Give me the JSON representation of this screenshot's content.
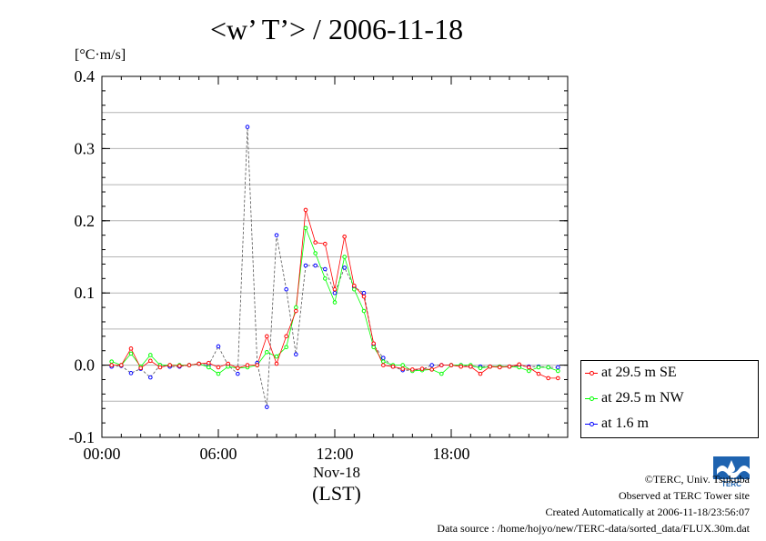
{
  "chart_data": {
    "type": "line",
    "title": "<w’ T’> / 2006-11-18",
    "ylabel": "[°C·m/s]",
    "xlabel": "(LST)",
    "x_date_label": "Nov-18",
    "ylim": [
      -0.1,
      0.4
    ],
    "xlim": [
      0,
      24
    ],
    "yticks": [
      -0.1,
      0.0,
      0.1,
      0.2,
      0.3,
      0.4
    ],
    "ytick_labels": [
      "-0.1",
      "0.0",
      "0.1",
      "0.2",
      "0.3",
      "0.4"
    ],
    "xticks": [
      0,
      6,
      12,
      18
    ],
    "xtick_labels": [
      "00:00",
      "06:00",
      "12:00",
      "18:00"
    ],
    "grid": "horizontal",
    "legend_position": "outside-bottom-right",
    "series": [
      {
        "name": "at 29.5 m SE",
        "color": "#ff0000",
        "x": [
          0.5,
          1.0,
          1.5,
          2.0,
          2.5,
          3.0,
          3.5,
          4.0,
          4.5,
          5.0,
          5.5,
          6.0,
          6.5,
          7.0,
          7.5,
          8.0,
          8.5,
          9.0,
          9.5,
          10.0,
          10.5,
          11.0,
          11.5,
          12.0,
          12.5,
          13.0,
          13.5,
          14.0,
          14.5,
          15.0,
          15.5,
          16.0,
          16.5,
          17.0,
          17.5,
          18.0,
          18.5,
          19.0,
          19.5,
          20.0,
          20.5,
          21.0,
          21.5,
          22.0,
          22.5,
          23.0,
          23.5
        ],
        "y": [
          0.0,
          0.0,
          0.023,
          -0.004,
          0.006,
          -0.003,
          0.0,
          -0.001,
          0.0,
          0.002,
          0.003,
          -0.003,
          0.002,
          -0.004,
          0.0,
          0.0,
          0.04,
          0.002,
          0.04,
          0.075,
          0.215,
          0.17,
          0.168,
          0.105,
          0.178,
          0.11,
          0.095,
          0.03,
          0.0,
          -0.002,
          -0.005,
          -0.006,
          -0.005,
          -0.006,
          0.0,
          0.0,
          -0.002,
          -0.002,
          -0.012,
          -0.002,
          -0.003,
          -0.002,
          0.001,
          -0.003,
          -0.012,
          -0.018,
          -0.018
        ]
      },
      {
        "name": "at 29.5 m NW",
        "color": "#00ff00",
        "x": [
          0.5,
          1.0,
          1.5,
          2.0,
          2.5,
          3.0,
          3.5,
          4.0,
          4.5,
          5.0,
          5.5,
          6.0,
          6.5,
          7.0,
          7.5,
          8.0,
          8.5,
          9.0,
          9.5,
          10.0,
          10.5,
          11.0,
          11.5,
          12.0,
          12.5,
          13.0,
          13.5,
          14.0,
          14.5,
          15.0,
          15.5,
          16.0,
          16.5,
          17.0,
          17.5,
          18.0,
          18.5,
          19.0,
          19.5,
          20.0,
          20.5,
          21.0,
          21.5,
          22.0,
          22.5,
          23.0,
          23.5
        ],
        "y": [
          0.005,
          0.0,
          0.016,
          -0.002,
          0.014,
          0.0,
          0.0,
          0.0,
          0.0,
          0.002,
          -0.003,
          -0.012,
          -0.002,
          -0.004,
          -0.003,
          0.0,
          0.018,
          0.012,
          0.025,
          0.08,
          0.19,
          0.155,
          0.12,
          0.087,
          0.15,
          0.105,
          0.075,
          0.025,
          0.005,
          0.0,
          0.0,
          -0.008,
          -0.007,
          -0.006,
          -0.012,
          0.0,
          0.0,
          0.0,
          -0.004,
          -0.002,
          -0.002,
          -0.002,
          -0.003,
          -0.008,
          -0.003,
          -0.003,
          -0.008
        ]
      },
      {
        "name": "at 1.6 m",
        "color": "#0000ff",
        "x": [
          0.5,
          1.0,
          1.5,
          2.0,
          2.5,
          3.0,
          3.5,
          4.0,
          4.5,
          5.0,
          5.5,
          6.0,
          6.5,
          7.0,
          7.5,
          8.0,
          8.5,
          9.0,
          9.5,
          10.0,
          10.5,
          11.0,
          11.5,
          12.0,
          12.5,
          13.0,
          13.5,
          14.0,
          14.5,
          15.0,
          15.5,
          16.0,
          16.5,
          17.0,
          17.5,
          18.0,
          18.5,
          19.0,
          19.5,
          20.0,
          20.5,
          21.0,
          21.5,
          22.0,
          22.5,
          23.0,
          23.5
        ],
        "y": [
          -0.002,
          -0.001,
          -0.011,
          -0.005,
          -0.017,
          0.0,
          -0.002,
          -0.002,
          0.0,
          0.002,
          0.0,
          0.026,
          0.0,
          -0.012,
          0.33,
          0.003,
          -0.058,
          0.18,
          0.105,
          0.015,
          0.138,
          0.138,
          0.133,
          0.1,
          0.135,
          0.108,
          0.1,
          0.028,
          0.01,
          -0.002,
          -0.007,
          -0.007,
          -0.006,
          0.0,
          0.0,
          0.0,
          0.0,
          -0.002,
          -0.002,
          -0.002,
          -0.002,
          -0.002,
          -0.001,
          -0.002,
          -0.002,
          -0.003,
          -0.003
        ]
      }
    ]
  },
  "footer": {
    "copyright": "©TERC, Univ. Tsukuba",
    "observed": "Observed at TERC Tower site",
    "created": "Created Automatically at 2006-11-18/23:56:07",
    "source": "Data source : /home/hojyo/new/TERC-data/sorted_data/FLUX.30m.dat",
    "logo_text": "TERC"
  }
}
